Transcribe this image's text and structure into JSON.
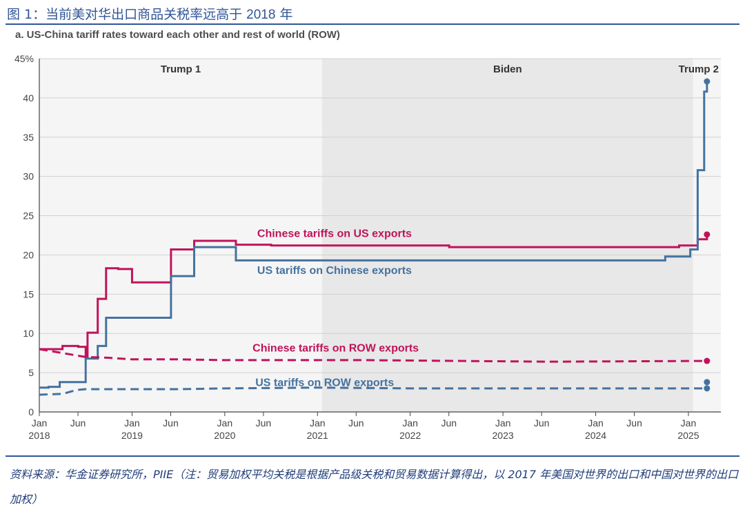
{
  "figure": {
    "prefix": "图 1：当前美对华出口商品关税率远高于 ",
    "year": "2018",
    "suffix": " 年"
  },
  "subtitle": "a. US-China tariff rates toward each other and rest of world (ROW)",
  "source_note": "资料来源：华金证券研究所，PIIE（注：贸易加权平均关税是根据产品级关税和贸易数据计算得出，以 2017 年美国对世界的出口和中国对世界的出口加权）",
  "colors": {
    "us_series": "#44729f",
    "china_series": "#c0135a",
    "biden_band": "#e8e8e8",
    "outer_band": "#f5f5f5",
    "grid": "#d0d0d0",
    "axis_text": "#444444"
  },
  "chart_data": {
    "type": "line",
    "title": "a. US-China tariff rates toward each other and rest of world (ROW)",
    "ylim": [
      0,
      45
    ],
    "yticks": [
      0,
      5,
      10,
      15,
      20,
      25,
      30,
      35,
      40,
      45
    ],
    "ytick_labels": [
      "0",
      "5",
      "10",
      "15",
      "20",
      "25",
      "30",
      "35",
      "40",
      "45%"
    ],
    "xlim": [
      2018.0,
      2025.35
    ],
    "xticks": [
      {
        "x": 2018.0,
        "label": "Jan",
        "year": "2018"
      },
      {
        "x": 2018.417,
        "label": "Jun",
        "year": ""
      },
      {
        "x": 2019.0,
        "label": "Jan",
        "year": "2019"
      },
      {
        "x": 2019.417,
        "label": "Jun",
        "year": ""
      },
      {
        "x": 2020.0,
        "label": "Jan",
        "year": "2020"
      },
      {
        "x": 2020.417,
        "label": "Jun",
        "year": ""
      },
      {
        "x": 2021.0,
        "label": "Jan",
        "year": "2021"
      },
      {
        "x": 2021.417,
        "label": "Jun",
        "year": ""
      },
      {
        "x": 2022.0,
        "label": "Jan",
        "year": "2022"
      },
      {
        "x": 2022.417,
        "label": "Jun",
        "year": ""
      },
      {
        "x": 2023.0,
        "label": "Jan",
        "year": "2023"
      },
      {
        "x": 2023.417,
        "label": "Jun",
        "year": ""
      },
      {
        "x": 2024.0,
        "label": "Jan",
        "year": "2024"
      },
      {
        "x": 2024.417,
        "label": "Jun",
        "year": ""
      },
      {
        "x": 2025.0,
        "label": "Jan",
        "year": "2025"
      }
    ],
    "periods": [
      {
        "label": "Trump 1",
        "start": 2018.0,
        "end": 2021.05
      },
      {
        "label": "Biden",
        "start": 2021.05,
        "end": 2025.05
      },
      {
        "label": "Trump 2",
        "start": 2025.05,
        "end": 2025.35
      }
    ],
    "grid": true,
    "series": [
      {
        "name": "Chinese tariffs on US exports",
        "color": "#c0135a",
        "dash": false,
        "step": true,
        "end_marker": true,
        "label_anchor": [
          2020.35,
          22.3
        ],
        "points": [
          [
            2018.0,
            8.0
          ],
          [
            2018.25,
            8.4
          ],
          [
            2018.42,
            8.3
          ],
          [
            2018.5,
            7.0
          ],
          [
            2018.52,
            10.1
          ],
          [
            2018.63,
            14.4
          ],
          [
            2018.72,
            18.3
          ],
          [
            2018.85,
            18.2
          ],
          [
            2019.0,
            16.5
          ],
          [
            2019.42,
            20.7
          ],
          [
            2019.67,
            21.8
          ],
          [
            2020.12,
            21.3
          ],
          [
            2020.5,
            21.2
          ],
          [
            2021.42,
            21.2
          ],
          [
            2022.42,
            21.0
          ],
          [
            2024.9,
            21.2
          ],
          [
            2025.1,
            22.0
          ],
          [
            2025.2,
            22.6
          ]
        ]
      },
      {
        "name": "US tariffs on Chinese exports",
        "color": "#44729f",
        "dash": false,
        "step": true,
        "end_marker": true,
        "label_anchor": [
          2020.35,
          17.6
        ],
        "points": [
          [
            2018.0,
            3.1
          ],
          [
            2018.1,
            3.2
          ],
          [
            2018.22,
            3.8
          ],
          [
            2018.5,
            6.8
          ],
          [
            2018.63,
            8.4
          ],
          [
            2018.72,
            12.0
          ],
          [
            2019.42,
            17.3
          ],
          [
            2019.67,
            21.0
          ],
          [
            2020.12,
            19.3
          ],
          [
            2024.75,
            19.8
          ],
          [
            2025.02,
            20.7
          ],
          [
            2025.1,
            30.8
          ],
          [
            2025.17,
            40.8
          ],
          [
            2025.2,
            42.1
          ]
        ]
      },
      {
        "name": "Chinese tariffs on ROW exports",
        "color": "#c0135a",
        "dash": true,
        "step": false,
        "end_marker": true,
        "label_anchor": [
          2020.3,
          7.7
        ],
        "points": [
          [
            2018.0,
            8.0
          ],
          [
            2018.5,
            7.0
          ],
          [
            2018.75,
            6.9
          ],
          [
            2019.0,
            6.7
          ],
          [
            2019.5,
            6.7
          ],
          [
            2020.0,
            6.6
          ],
          [
            2021.5,
            6.6
          ],
          [
            2022.5,
            6.5
          ],
          [
            2023.5,
            6.4
          ],
          [
            2025.2,
            6.5
          ]
        ]
      },
      {
        "name": "US tariffs on ROW exports",
        "color": "#44729f",
        "dash": true,
        "step": false,
        "end_marker": true,
        "label_anchor": [
          2020.33,
          3.3
        ],
        "points": [
          [
            2018.0,
            2.2
          ],
          [
            2018.25,
            2.3
          ],
          [
            2018.4,
            2.8
          ],
          [
            2018.5,
            2.9
          ],
          [
            2019.5,
            2.9
          ],
          [
            2020.0,
            3.0
          ],
          [
            2021.0,
            3.1
          ],
          [
            2022.0,
            3.0
          ],
          [
            2025.2,
            3.0
          ]
        ]
      },
      {
        "name": "",
        "color": "#44729f",
        "dash": false,
        "step": false,
        "end_marker": false,
        "points": [
          [
            2025.2,
            3.8
          ]
        ]
      }
    ]
  }
}
